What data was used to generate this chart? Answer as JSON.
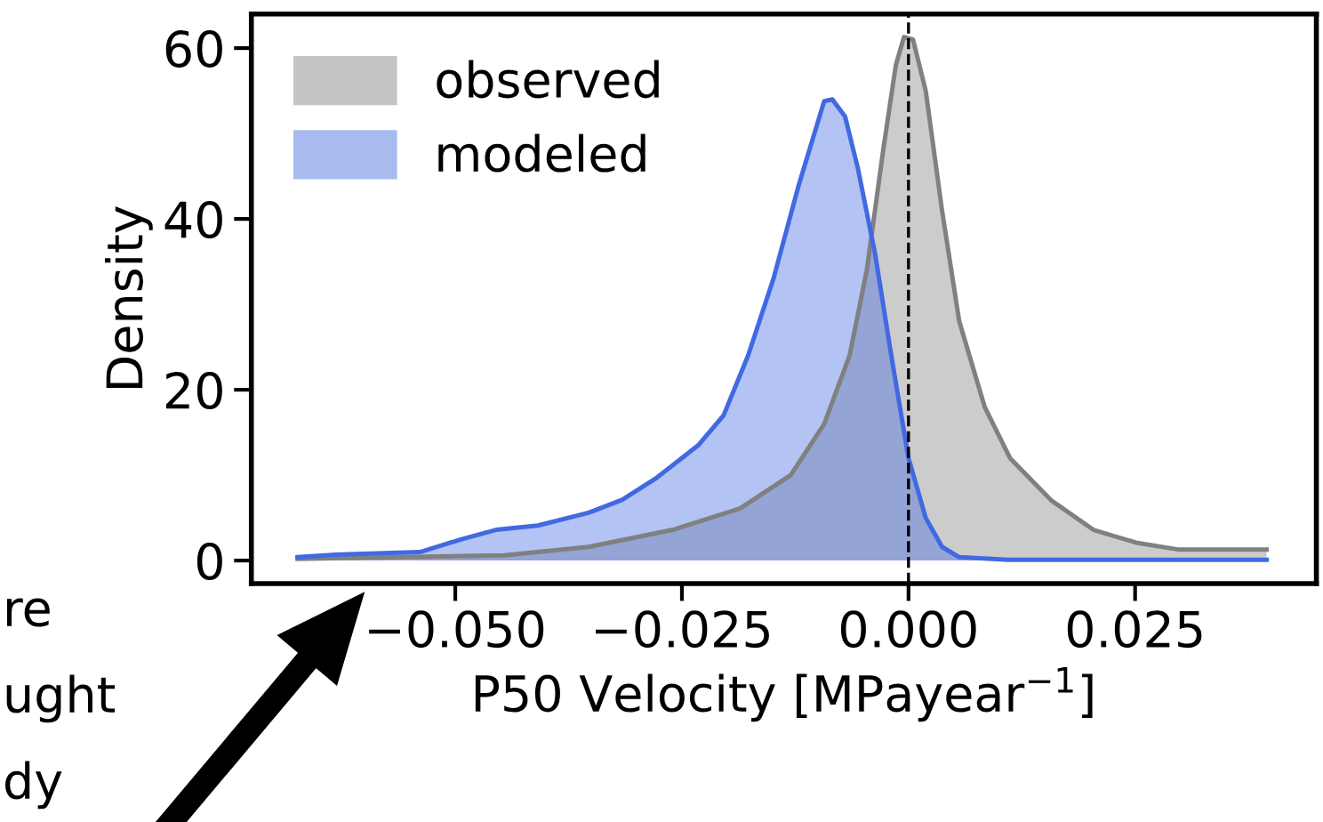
{
  "chart_data": {
    "type": "area",
    "xlabel": "P50 Velocity [MPayear$^{−1}$]",
    "ylabel": "Density",
    "series": [
      {
        "name": "observed",
        "color": "#808080",
        "x": [
          -0.0674,
          -0.0446,
          -0.0353,
          -0.026,
          -0.0186,
          -0.013,
          -0.0093,
          -0.0065,
          -0.0046,
          -0.0028,
          -0.0014,
          -0.0005,
          0.0005,
          0.0019,
          0.0037,
          0.0056,
          0.0084,
          0.0112,
          0.0158,
          0.0204,
          0.0251,
          0.0297,
          0.0395
        ],
        "values": [
          0.2,
          0.6,
          1.6,
          3.6,
          6.1,
          10,
          16,
          24,
          34,
          48,
          58,
          61.3,
          61,
          55,
          41,
          28,
          18,
          12,
          7,
          3.6,
          2.1,
          1.3,
          1.3
        ]
      },
      {
        "name": "modeled",
        "color": "#4169e1",
        "x": [
          -0.0674,
          -0.0632,
          -0.0539,
          -0.0493,
          -0.0455,
          -0.0409,
          -0.0353,
          -0.0316,
          -0.0279,
          -0.0232,
          -0.0204,
          -0.0177,
          -0.0149,
          -0.0121,
          -0.0093,
          -0.0084,
          -0.007,
          -0.0056,
          -0.0037,
          -0.0019,
          0.0,
          0.0019,
          0.0037,
          0.0056,
          0.011,
          0.0395
        ],
        "values": [
          0.4,
          0.7,
          1.0,
          2.5,
          3.6,
          4.1,
          5.6,
          7.1,
          9.6,
          13.5,
          17,
          24,
          33,
          44,
          53.8,
          54,
          52,
          46,
          36,
          24,
          12,
          5,
          1.6,
          0.4,
          0.1,
          0.1
        ]
      }
    ],
    "xlim": [
      -0.0725,
      0.045
    ],
    "ylim": [
      -2.7,
      64
    ],
    "xticks": [
      {
        "value": -0.05,
        "label": "−0.050"
      },
      {
        "value": -0.025,
        "label": "−0.025"
      },
      {
        "value": 0,
        "label": "0.000"
      },
      {
        "value": 0.025,
        "label": "0.025"
      }
    ],
    "yticks": [
      0,
      20,
      40,
      60
    ],
    "ref_lines": [
      {
        "axis": "x",
        "value": 0,
        "color": "#000000",
        "line_style": "dashed"
      }
    ],
    "legend": "top left",
    "grid": false,
    "annotations": [
      "re",
      "ught",
      "dy"
    ]
  }
}
